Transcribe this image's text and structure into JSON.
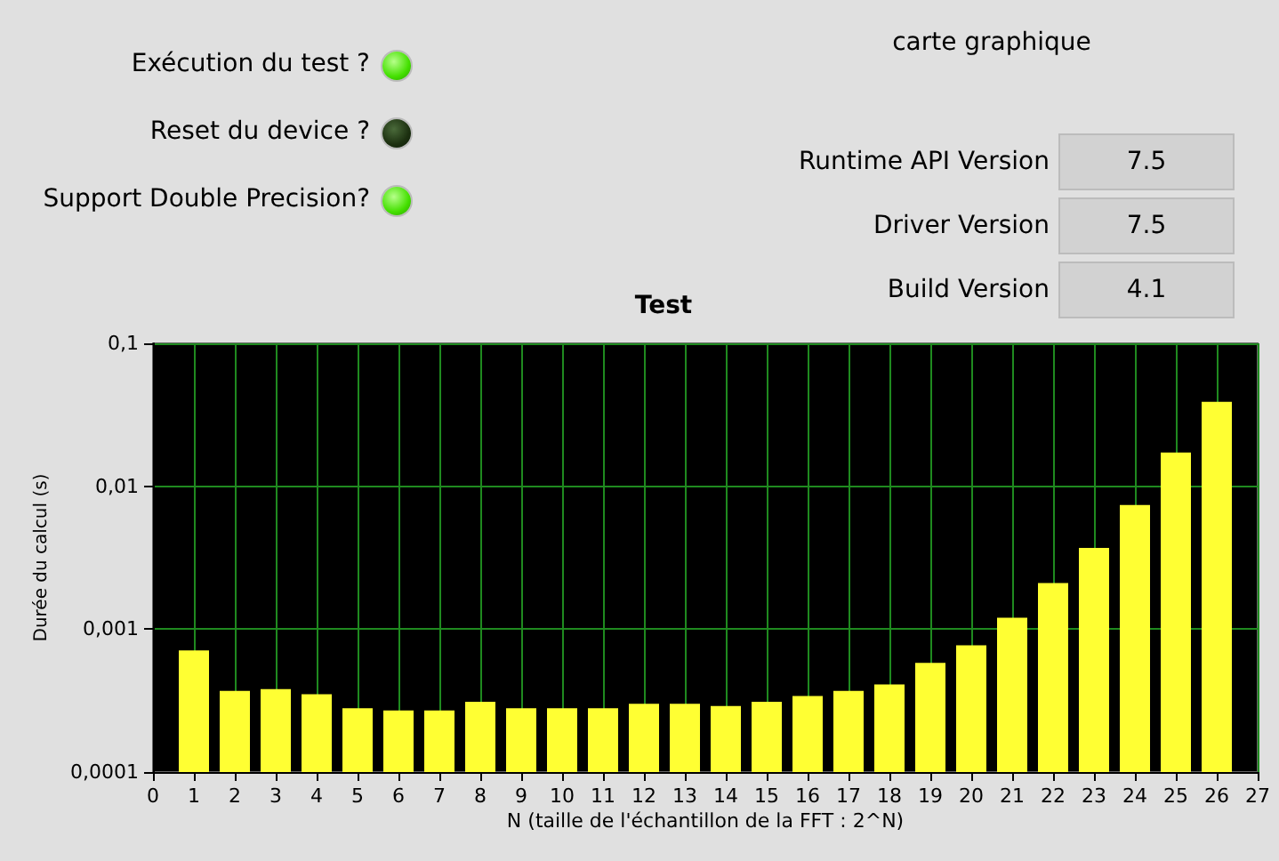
{
  "chart_data": {
    "type": "bar",
    "title": "Test",
    "xlabel": "N (taille de l'échantillon de la FFT : 2^N)",
    "ylabel": "Durée du calcul (s)",
    "annotations": [
      "Exécution du test ?",
      "Reset du device ?",
      "Support Double Precision?",
      "carte graphique",
      "Runtime API Version",
      "7.5",
      "Driver Version",
      "7.5",
      "Build Version",
      "4.1"
    ],
    "x": [
      1,
      2,
      3,
      4,
      5,
      6,
      7,
      8,
      9,
      10,
      11,
      12,
      13,
      14,
      15,
      16,
      17,
      18,
      19,
      20,
      21,
      22,
      23,
      24,
      25,
      26
    ],
    "values": [
      0.00071,
      0.00037,
      0.00038,
      0.00035,
      0.00028,
      0.00027,
      0.00027,
      0.00031,
      0.00028,
      0.00028,
      0.00028,
      0.0003,
      0.0003,
      0.00029,
      0.00031,
      0.00034,
      0.00037,
      0.00041,
      0.00058,
      0.00077,
      0.0012,
      0.0021,
      0.0037,
      0.0074,
      0.0172,
      0.039
    ],
    "color": "#ffff33",
    "log": "y",
    "xlim": [
      0,
      27
    ],
    "xticks": [
      0,
      1,
      2,
      3,
      4,
      5,
      6,
      7,
      8,
      9,
      10,
      11,
      12,
      13,
      14,
      15,
      16,
      17,
      18,
      19,
      20,
      21,
      22,
      23,
      24,
      25,
      26,
      27
    ],
    "ylim": [
      0.0001,
      0.1
    ],
    "yticks": [
      {
        "value": 0.0001,
        "label": "0,0001"
      },
      {
        "value": 0.001,
        "label": "0,001"
      },
      {
        "value": 0.01,
        "label": "0,01"
      },
      {
        "value": 0.1,
        "label": "0,1"
      }
    ],
    "grid": true
  }
}
